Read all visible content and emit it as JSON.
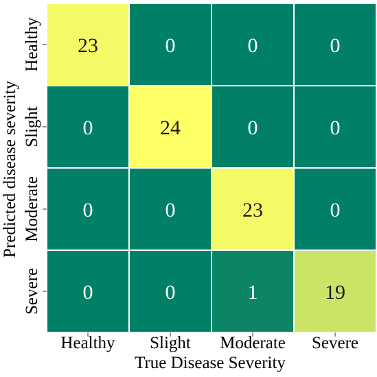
{
  "chart_data": {
    "type": "heatmap",
    "title": "",
    "xlabel": "True Disease Severity",
    "ylabel": "Predicted disease severity",
    "x_categories": [
      "Healthy",
      "Slight",
      "Moderate",
      "Severe"
    ],
    "y_categories": [
      "Healthy",
      "Slight",
      "Moderate",
      "Severe"
    ],
    "values": [
      [
        23,
        0,
        0,
        0
      ],
      [
        0,
        24,
        0,
        0
      ],
      [
        0,
        0,
        23,
        0
      ],
      [
        0,
        0,
        1,
        19
      ]
    ],
    "colormap": "summer",
    "value_range": [
      0,
      24
    ],
    "colors": {
      "low": "#008066",
      "high": "#ffff66",
      "cell_border": "#ffffff",
      "text_on_low": "#ffffff",
      "text_on_high": "#1a1a1a"
    }
  }
}
